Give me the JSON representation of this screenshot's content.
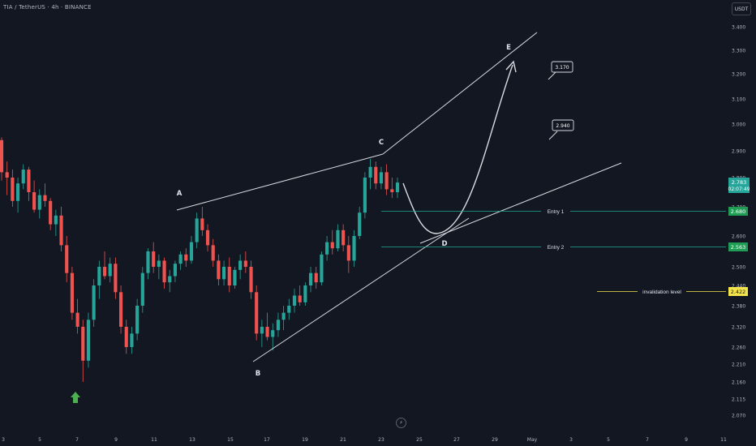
{
  "header": {
    "symbol_title": "TIA / TetherUS · 4h · BINANCE",
    "currency": "USDT"
  },
  "price_axis": {
    "ticks": [
      "3.400",
      "3.300",
      "3.200",
      "3.100",
      "3.000",
      "2.900",
      "2.800",
      "2.700",
      "2.600",
      "2.500",
      "2.440",
      "2.380",
      "2.320",
      "2.260",
      "2.210",
      "2.160",
      "2.115",
      "2.070"
    ],
    "current_price": {
      "label": "2.783",
      "timer": "02:07:49",
      "color": "#26a69a"
    },
    "entry1_badge": {
      "label": "2.680",
      "color": "#1f9d55"
    },
    "entry2_badge": {
      "label": "2.563",
      "color": "#1f9d55"
    },
    "invalidation_badge": {
      "label": "2.422",
      "color": "#f5e44c"
    }
  },
  "time_axis": {
    "ticks": [
      "3",
      "5",
      "7",
      "9",
      "11",
      "13",
      "15",
      "17",
      "19",
      "21",
      "23",
      "25",
      "27",
      "29",
      "May",
      "3",
      "5",
      "7",
      "9",
      "11"
    ]
  },
  "annotations": {
    "wave_labels": [
      "A",
      "B",
      "C",
      "D",
      "E"
    ],
    "entry1_label": "Entry 1",
    "entry2_label": "Entry 2",
    "invalidation_label": "invalidation level",
    "target_callouts": [
      "3.170",
      "2.940"
    ],
    "up_color": "#26a69a",
    "down_color": "#ef5350",
    "level_color": "#22ab94",
    "invalidation_color": "#f5e44c",
    "line_color": "#d9dbe0",
    "arrow_color": "#4caf50"
  },
  "chart_data": {
    "type": "candlestick",
    "symbol": "TIA / TetherUS",
    "interval": "4h",
    "exchange": "BINANCE",
    "currency": "USDT",
    "x_axis_ticks": [
      "3",
      "5",
      "7",
      "9",
      "11",
      "13",
      "15",
      "17",
      "19",
      "21",
      "23",
      "25",
      "27",
      "29",
      "May",
      "3",
      "5",
      "7",
      "9",
      "11"
    ],
    "y_ticks": [
      3.4,
      3.3,
      3.2,
      3.1,
      3.0,
      2.9,
      2.8,
      2.7,
      2.6,
      2.5,
      2.44,
      2.38,
      2.32,
      2.26,
      2.21,
      2.16,
      2.115,
      2.07
    ],
    "current_price": 2.783,
    "candles": [
      [
        2.94,
        2.95,
        2.79,
        2.82
      ],
      [
        2.82,
        2.86,
        2.74,
        2.8
      ],
      [
        2.8,
        2.83,
        2.7,
        2.72
      ],
      [
        2.72,
        2.8,
        2.68,
        2.78
      ],
      [
        2.78,
        2.85,
        2.76,
        2.83
      ],
      [
        2.83,
        2.84,
        2.72,
        2.75
      ],
      [
        2.75,
        2.79,
        2.68,
        2.69
      ],
      [
        2.69,
        2.76,
        2.66,
        2.74
      ],
      [
        2.74,
        2.78,
        2.7,
        2.72
      ],
      [
        2.72,
        2.73,
        2.62,
        2.64
      ],
      [
        2.64,
        2.69,
        2.6,
        2.67
      ],
      [
        2.67,
        2.7,
        2.55,
        2.57
      ],
      [
        2.57,
        2.6,
        2.45,
        2.48
      ],
      [
        2.48,
        2.5,
        2.34,
        2.36
      ],
      [
        2.36,
        2.4,
        2.3,
        2.32
      ],
      [
        2.32,
        2.34,
        2.16,
        2.22
      ],
      [
        2.22,
        2.36,
        2.2,
        2.34
      ],
      [
        2.34,
        2.46,
        2.32,
        2.44
      ],
      [
        2.44,
        2.52,
        2.4,
        2.5
      ],
      [
        2.5,
        2.55,
        2.46,
        2.47
      ],
      [
        2.47,
        2.53,
        2.45,
        2.51
      ],
      [
        2.51,
        2.53,
        2.4,
        2.42
      ],
      [
        2.42,
        2.44,
        2.3,
        2.32
      ],
      [
        2.32,
        2.34,
        2.24,
        2.26
      ],
      [
        2.26,
        2.32,
        2.24,
        2.3
      ],
      [
        2.3,
        2.4,
        2.28,
        2.38
      ],
      [
        2.38,
        2.5,
        2.36,
        2.48
      ],
      [
        2.48,
        2.56,
        2.46,
        2.55
      ],
      [
        2.55,
        2.58,
        2.48,
        2.5
      ],
      [
        2.5,
        2.54,
        2.46,
        2.52
      ],
      [
        2.52,
        2.53,
        2.43,
        2.45
      ],
      [
        2.45,
        2.49,
        2.42,
        2.47
      ],
      [
        2.47,
        2.52,
        2.45,
        2.51
      ],
      [
        2.51,
        2.55,
        2.49,
        2.54
      ],
      [
        2.54,
        2.56,
        2.5,
        2.52
      ],
      [
        2.52,
        2.6,
        2.51,
        2.58
      ],
      [
        2.58,
        2.68,
        2.56,
        2.66
      ],
      [
        2.66,
        2.7,
        2.6,
        2.62
      ],
      [
        2.62,
        2.64,
        2.55,
        2.57
      ],
      [
        2.57,
        2.59,
        2.5,
        2.52
      ],
      [
        2.52,
        2.54,
        2.44,
        2.46
      ],
      [
        2.46,
        2.52,
        2.44,
        2.5
      ],
      [
        2.5,
        2.53,
        2.42,
        2.44
      ],
      [
        2.44,
        2.5,
        2.43,
        2.49
      ],
      [
        2.49,
        2.54,
        2.46,
        2.52
      ],
      [
        2.52,
        2.55,
        2.48,
        2.5
      ],
      [
        2.5,
        2.52,
        2.4,
        2.42
      ],
      [
        2.42,
        2.44,
        2.28,
        2.3
      ],
      [
        2.3,
        2.34,
        2.26,
        2.32
      ],
      [
        2.32,
        2.36,
        2.28,
        2.29
      ],
      [
        2.29,
        2.33,
        2.25,
        2.31
      ],
      [
        2.31,
        2.36,
        2.29,
        2.34
      ],
      [
        2.34,
        2.38,
        2.31,
        2.36
      ],
      [
        2.36,
        2.4,
        2.34,
        2.38
      ],
      [
        2.38,
        2.43,
        2.36,
        2.41
      ],
      [
        2.41,
        2.44,
        2.38,
        2.39
      ],
      [
        2.39,
        2.45,
        2.38,
        2.44
      ],
      [
        2.44,
        2.5,
        2.42,
        2.48
      ],
      [
        2.48,
        2.5,
        2.43,
        2.45
      ],
      [
        2.45,
        2.55,
        2.44,
        2.54
      ],
      [
        2.54,
        2.6,
        2.52,
        2.58
      ],
      [
        2.58,
        2.62,
        2.54,
        2.56
      ],
      [
        2.56,
        2.64,
        2.55,
        2.62
      ],
      [
        2.62,
        2.64,
        2.55,
        2.57
      ],
      [
        2.57,
        2.6,
        2.48,
        2.52
      ],
      [
        2.52,
        2.62,
        2.5,
        2.6
      ],
      [
        2.6,
        2.7,
        2.59,
        2.68
      ],
      [
        2.68,
        2.82,
        2.66,
        2.8
      ],
      [
        2.8,
        2.87,
        2.76,
        2.84
      ],
      [
        2.84,
        2.86,
        2.76,
        2.78
      ],
      [
        2.78,
        2.84,
        2.76,
        2.82
      ],
      [
        2.82,
        2.85,
        2.74,
        2.76
      ],
      [
        2.76,
        2.8,
        2.73,
        2.75
      ],
      [
        2.75,
        2.8,
        2.73,
        2.783
      ]
    ]
  }
}
